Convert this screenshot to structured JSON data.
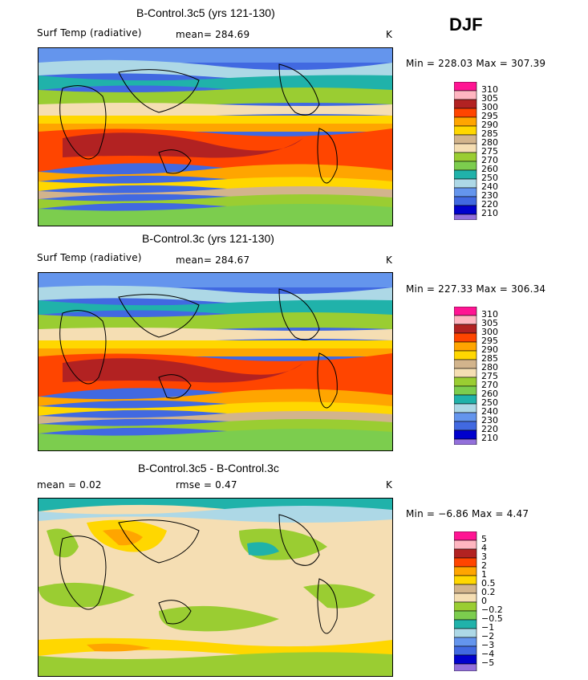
{
  "season": "DJF",
  "colors": {
    "c310": "#ff1493",
    "c305": "#ffb6c1",
    "c300": "#b22222",
    "c295": "#ff4500",
    "c290": "#ffa500",
    "c285": "#ffd700",
    "c280": "#f5deb3",
    "c275": "#d2b48c",
    "c270": "#9acd32",
    "c260": "#7ccd4e",
    "c250": "#20b2aa",
    "c240": "#add8e6",
    "c230": "#6495ed",
    "c220": "#4169e1",
    "c210": "#0000cd",
    "cmin": "#9370db",
    "coast": "#000000"
  },
  "panels": [
    {
      "title": "B-Control.3c5 (yrs 121-130)",
      "left_label": "Surf Temp (radiative)",
      "mid_label": "mean= 284.69",
      "unit": "K",
      "minmax": "Min = 228.03 Max = 307.39",
      "legend_labels": [
        "310",
        "305",
        "300",
        "295",
        "290",
        "285",
        "280",
        "275",
        "270",
        "260",
        "250",
        "240",
        "230",
        "220",
        "210"
      ]
    },
    {
      "title": "B-Control.3c (yrs 121-130)",
      "left_label": "Surf Temp (radiative)",
      "mid_label": "mean= 284.67",
      "unit": "K",
      "minmax": "Min = 227.33 Max = 306.34",
      "legend_labels": [
        "310",
        "305",
        "300",
        "295",
        "290",
        "285",
        "280",
        "275",
        "270",
        "260",
        "250",
        "240",
        "230",
        "220",
        "210"
      ]
    },
    {
      "title": "B-Control.3c5 - B-Control.3c",
      "left_label": "mean =    0.02",
      "mid_label": "rmse =    0.47",
      "unit": "K",
      "minmax": "Min =  −6.86 Max =    4.47",
      "legend_labels": [
        "5",
        "4",
        "3",
        "2",
        "1",
        "0.5",
        "0.2",
        "0",
        "−0.2",
        "−0.5",
        "−1",
        "−2",
        "−3",
        "−4",
        "−5"
      ]
    }
  ]
}
